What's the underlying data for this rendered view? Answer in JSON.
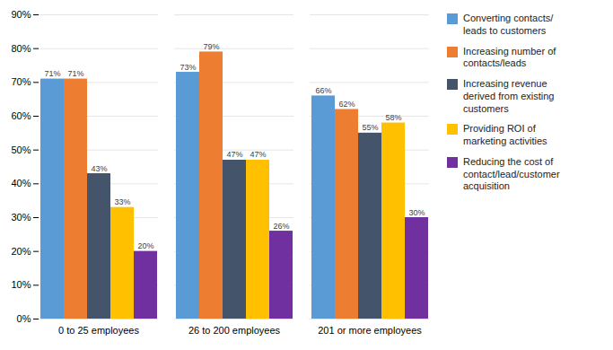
{
  "chart_data": {
    "type": "bar",
    "categories": [
      "0 to 25 employees",
      "26 to 200 employees",
      "201 or more employees"
    ],
    "series": [
      {
        "name": "Converting contacts/\nleads to customers",
        "color": "#5B9BD5",
        "values": [
          71,
          73,
          66
        ],
        "value_labels": [
          "71%",
          "73%",
          "66%"
        ]
      },
      {
        "name": "Increasing number of\ncontacts/leads",
        "color": "#ED7D31",
        "values": [
          71,
          79,
          62
        ],
        "value_labels": [
          "71%",
          "79%",
          "62%"
        ]
      },
      {
        "name": "Increasing revenue\nderived from existing\ncustomers",
        "color": "#44546A",
        "values": [
          43,
          47,
          55
        ],
        "value_labels": [
          "43%",
          "47%",
          "55%"
        ]
      },
      {
        "name": "Providing ROI of\nmarketing activities",
        "color": "#FFC000",
        "values": [
          33,
          47,
          58
        ],
        "value_labels": [
          "33%",
          "47%",
          "58%"
        ]
      },
      {
        "name": "Reducing the cost of\ncontact/lead/customer\nacquisition",
        "color": "#7030A0",
        "values": [
          20,
          26,
          30
        ],
        "value_labels": [
          "20%",
          "26%",
          "30%"
        ]
      }
    ],
    "ylim": [
      0,
      90
    ],
    "yticks": [
      {
        "value": 0,
        "label": "0%"
      },
      {
        "value": 10,
        "label": "10%"
      },
      {
        "value": 20,
        "label": "20%"
      },
      {
        "value": 30,
        "label": "30%"
      },
      {
        "value": 40,
        "label": "40%"
      },
      {
        "value": 50,
        "label": "50%"
      },
      {
        "value": 60,
        "label": "60%"
      },
      {
        "value": 70,
        "label": "70%"
      },
      {
        "value": 80,
        "label": "80%"
      },
      {
        "value": 90,
        "label": "90%"
      }
    ],
    "grid": true,
    "legend": "right",
    "data_labels": true
  }
}
